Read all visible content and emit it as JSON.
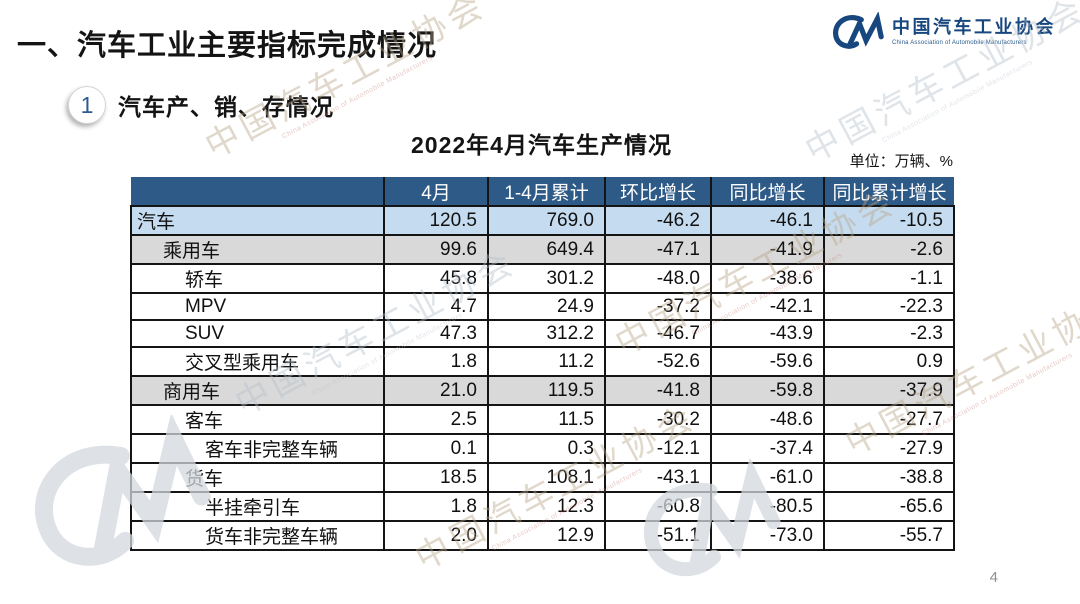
{
  "page": {
    "title": "一、汽车工业主要指标完成情况",
    "page_number": "4"
  },
  "logo": {
    "monogram": "CM",
    "name_cn": "中国汽车工业协会",
    "name_en": "China Association of Automobile Manufacturers",
    "color": "#17477E"
  },
  "section": {
    "index": "1",
    "label": "汽车产、销、存情况"
  },
  "chart_data": {
    "type": "table",
    "title": "2022年4月汽车生产情况",
    "unit": "单位：万辆、%",
    "columns": [
      "",
      "4月",
      "1-4月累计",
      "环比增长",
      "同比增长",
      "同比累计增长"
    ],
    "rows": [
      {
        "label": "汽车",
        "indent": 0,
        "style": "highlight-blue",
        "values": [
          "120.5",
          "769.0",
          "-46.2",
          "-46.1",
          "-10.5"
        ]
      },
      {
        "label": "乘用车",
        "indent": 1,
        "style": "highlight-gray",
        "values": [
          "99.6",
          "649.4",
          "-47.1",
          "-41.9",
          "-2.6"
        ]
      },
      {
        "label": "轿车",
        "indent": 2,
        "style": "plain",
        "values": [
          "45.8",
          "301.2",
          "-48.0",
          "-38.6",
          "-1.1"
        ]
      },
      {
        "label": "MPV",
        "indent": 2,
        "style": "plain",
        "values": [
          "4.7",
          "24.9",
          "-37.2",
          "-42.1",
          "-22.3"
        ]
      },
      {
        "label": "SUV",
        "indent": 2,
        "style": "plain",
        "values": [
          "47.3",
          "312.2",
          "-46.7",
          "-43.9",
          "-2.3"
        ]
      },
      {
        "label": "交叉型乘用车",
        "indent": 2,
        "style": "plain",
        "values": [
          "1.8",
          "11.2",
          "-52.6",
          "-59.6",
          "0.9"
        ]
      },
      {
        "label": "商用车",
        "indent": 1,
        "style": "highlight-gray",
        "values": [
          "21.0",
          "119.5",
          "-41.8",
          "-59.8",
          "-37.9"
        ]
      },
      {
        "label": "客车",
        "indent": 2,
        "style": "plain",
        "values": [
          "2.5",
          "11.5",
          "-30.2",
          "-48.6",
          "-27.7"
        ]
      },
      {
        "label": "客车非完整车辆",
        "indent": 3,
        "style": "plain",
        "values": [
          "0.1",
          "0.3",
          "-12.1",
          "-37.4",
          "-27.9"
        ]
      },
      {
        "label": "货车",
        "indent": 2,
        "style": "plain",
        "values": [
          "18.5",
          "108.1",
          "-43.1",
          "-61.0",
          "-38.8"
        ]
      },
      {
        "label": "半挂牵引车",
        "indent": 3,
        "style": "plain",
        "values": [
          "1.8",
          "12.3",
          "-60.8",
          "-80.5",
          "-65.6"
        ]
      },
      {
        "label": "货车非完整车辆",
        "indent": 3,
        "style": "plain",
        "values": [
          "2.0",
          "12.9",
          "-51.1",
          "-73.0",
          "-55.7"
        ]
      }
    ],
    "colors": {
      "header_bg": "#2E5A87",
      "header_text": "#FFFFFF",
      "row_blue": "#C5DCF0",
      "row_gray": "#D9D9D9",
      "border": "#141414"
    },
    "layout": {
      "grid": "all-borders",
      "first_column_align": "left",
      "value_align": "right"
    }
  },
  "watermark": {
    "text_cn": "中国汽车工业协会",
    "text_en": "China Association of Automobile Manufacturers"
  }
}
